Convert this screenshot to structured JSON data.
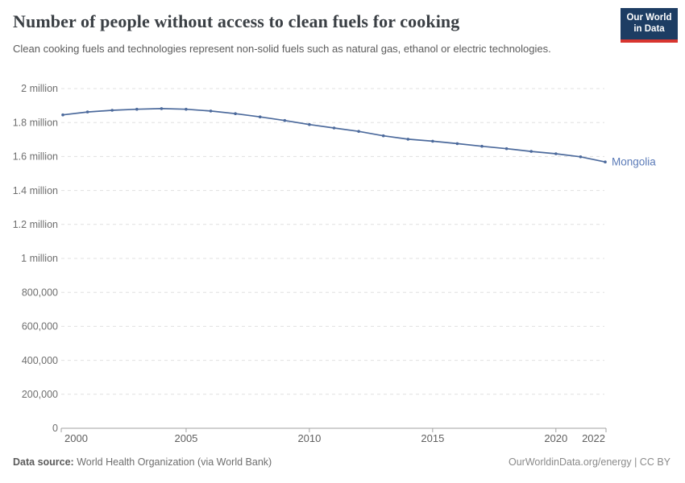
{
  "header": {
    "title": "Number of people without access to clean fuels for cooking",
    "subtitle": "Clean cooking fuels and technologies represent non-solid fuels such as natural gas, ethanol or electric technologies.",
    "logo": {
      "line1": "Our World",
      "line2": "in Data"
    }
  },
  "chart_data": {
    "type": "line",
    "title": "Number of people without access to clean fuels for cooking",
    "x": [
      2000,
      2001,
      2002,
      2003,
      2004,
      2005,
      2006,
      2007,
      2008,
      2009,
      2010,
      2011,
      2012,
      2013,
      2014,
      2015,
      2016,
      2017,
      2018,
      2019,
      2020,
      2021,
      2022
    ],
    "series": [
      {
        "name": "Mongolia",
        "values": [
          1845000,
          1862000,
          1872000,
          1878000,
          1882000,
          1878000,
          1868000,
          1852000,
          1833000,
          1812000,
          1788000,
          1768000,
          1748000,
          1722000,
          1702000,
          1690000,
          1676000,
          1660000,
          1646000,
          1630000,
          1616000,
          1598000,
          1568000
        ]
      }
    ],
    "end_label": "Mongolia",
    "xlabel": "",
    "ylabel": "",
    "xlim": [
      2000,
      2022
    ],
    "ylim": [
      0,
      2000000
    ],
    "xticks": [
      2000,
      2005,
      2010,
      2015,
      2020,
      2022
    ],
    "yticks": [
      {
        "value": 2000000,
        "label": "2 million"
      },
      {
        "value": 1800000,
        "label": "1.8 million"
      },
      {
        "value": 1600000,
        "label": "1.6 million"
      },
      {
        "value": 1400000,
        "label": "1.4 million"
      },
      {
        "value": 1200000,
        "label": "1.2 million"
      },
      {
        "value": 1000000,
        "label": "1 million"
      },
      {
        "value": 800000,
        "label": "800,000"
      },
      {
        "value": 600000,
        "label": "600,000"
      },
      {
        "value": 400000,
        "label": "400,000"
      },
      {
        "value": 200000,
        "label": "200,000"
      },
      {
        "value": 0,
        "label": "0"
      }
    ],
    "grid": "horizontal-dashed",
    "legend": "none"
  },
  "colors": {
    "line": "#4c6a9c",
    "entity_label": "#5b7bb8",
    "grid": "#e0e0e0",
    "axis": "#a1a1a1",
    "y_tick_label": "#6e6e6e",
    "x_tick_label": "#606060",
    "logo_bg": "#1d3d63",
    "logo_stripe": "#d8352f"
  },
  "footer": {
    "source_label": "Data source:",
    "source_value": " World Health Organization (via World Bank)",
    "credit": "OurWorldinData.org/energy | CC BY"
  }
}
